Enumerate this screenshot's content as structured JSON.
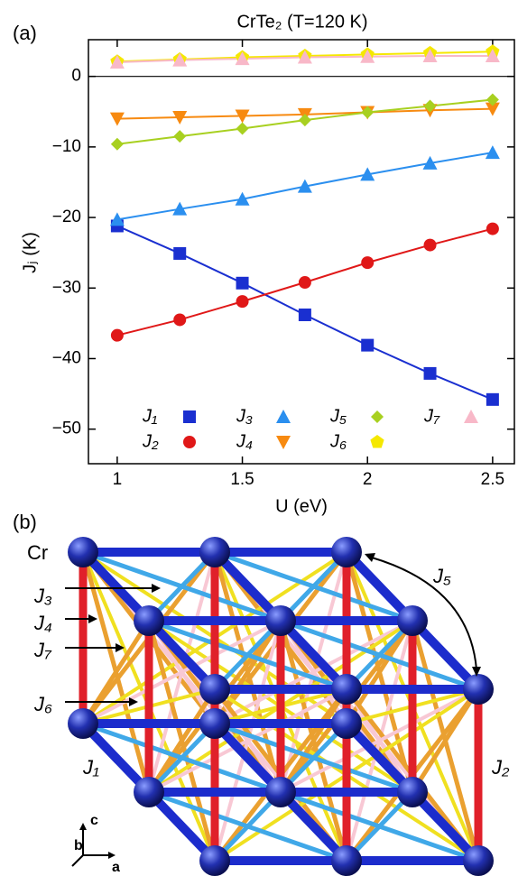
{
  "chart_data": {
    "type": "line",
    "panel_label": "(a)",
    "title": "CrTe₂ (T=120 K)",
    "x_label": "U (eV)",
    "y_label": "Jⱼ (K)",
    "x": [
      1,
      1.25,
      1.5,
      1.75,
      2,
      2.25,
      2.5
    ],
    "xlim": [
      0.885,
      2.587
    ],
    "ylim": [
      -54.9,
      5.2
    ],
    "xticks": [
      1,
      1.5,
      2,
      2.5
    ],
    "yticks": [
      {
        "value": 0,
        "label": "0"
      },
      {
        "value": -10,
        "label": "−10"
      },
      {
        "value": -20,
        "label": "−20"
      },
      {
        "value": -30,
        "label": "−30"
      },
      {
        "value": -40,
        "label": "−40"
      },
      {
        "value": -50,
        "label": "−50"
      }
    ],
    "zero_line": true,
    "series": [
      {
        "name": "J₁",
        "color": "#1a2fd0",
        "marker": "square",
        "values": [
          -21.2,
          -25.1,
          -29.3,
          -33.8,
          -38.1,
          -42.1,
          -45.8
        ]
      },
      {
        "name": "J₂",
        "color": "#e01818",
        "marker": "circle",
        "values": [
          -36.7,
          -34.5,
          -31.9,
          -29.2,
          -26.4,
          -23.9,
          -21.6
        ]
      },
      {
        "name": "J₃",
        "color": "#2b8fef",
        "marker": "triangle-up",
        "values": [
          -20.3,
          -18.8,
          -17.4,
          -15.6,
          -13.9,
          -12.3,
          -10.8
        ]
      },
      {
        "name": "J₄",
        "color": "#f78a10",
        "marker": "triangle-down",
        "values": [
          -6.0,
          -5.8,
          -5.6,
          -5.4,
          -5.1,
          -4.8,
          -4.6
        ]
      },
      {
        "name": "J₅",
        "color": "#a8d020",
        "marker": "diamond",
        "values": [
          -9.6,
          -8.5,
          -7.4,
          -6.2,
          -5.1,
          -4.2,
          -3.3
        ]
      },
      {
        "name": "J₆",
        "color": "#f5e800",
        "marker": "pentagon",
        "values": [
          2.1,
          2.4,
          2.7,
          2.9,
          3.1,
          3.3,
          3.5
        ]
      },
      {
        "name": "J₇",
        "color": "#f8b8c8",
        "marker": "triangle-up",
        "values": [
          2.0,
          2.3,
          2.5,
          2.7,
          2.8,
          2.9,
          2.9
        ]
      }
    ]
  },
  "diagram": {
    "panel_label": "(b)",
    "atom": "Cr",
    "labels": {
      "J3": "J₃",
      "J4": "J₄",
      "J7": "J₇",
      "J6": "J₆",
      "J1": "J₁",
      "J5": "J₅",
      "J2": "J₂"
    },
    "axes": {
      "a": "a",
      "b": "b",
      "c": "c"
    }
  }
}
